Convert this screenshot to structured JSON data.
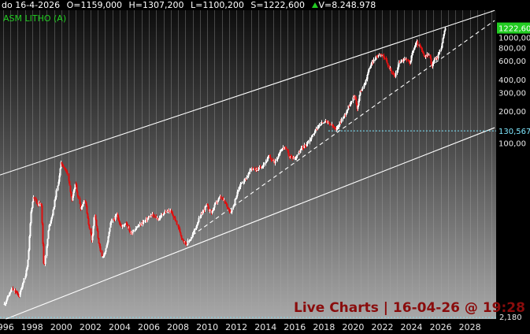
{
  "header": {
    "date": "do 16-4-2026",
    "open": "O=1159,000",
    "high": "H=1307,200",
    "low": "L=1100,200",
    "close": "S=1222,600",
    "volume": "V=8.248.978"
  },
  "symbol": "ASM LITHO (A)",
  "watermark": "Live Charts | 16-04-26 @ 19:28",
  "colors": {
    "up": "#ffffff",
    "down": "#dd1111",
    "last_price_bg": "#22cc22",
    "support_line": "#7fe8ff",
    "channel": "#ffffff",
    "grid": "#a8a8a8",
    "volume_arrow": "#22cc22"
  },
  "chart_data": {
    "type": "candlestick",
    "y_scale": "log",
    "ylim": [
      2.18,
      1800
    ],
    "xlim": [
      1995.8,
      2029.8
    ],
    "y_ticks": [
      {
        "v": 1000,
        "label": "1000,00"
      },
      {
        "v": 800,
        "label": "800,00"
      },
      {
        "v": 600,
        "label": "600,00"
      },
      {
        "v": 400,
        "label": "400,00"
      },
      {
        "v": 300,
        "label": "300,00"
      },
      {
        "v": 200,
        "label": "200,00"
      },
      {
        "v": 100,
        "label": "100,00"
      }
    ],
    "x_ticks": [
      "1996",
      "1998",
      "2000",
      "2002",
      "2004",
      "2006",
      "2008",
      "2010",
      "2012",
      "2014",
      "2016",
      "2018",
      "2020",
      "2022",
      "2024",
      "2026",
      "2028"
    ],
    "last_price": {
      "value": 1222.6,
      "label": "1222,60"
    },
    "support_level": {
      "value": 130.567,
      "label": "130,567",
      "from_year": 2018.3
    },
    "min_level": {
      "value": 2.18,
      "label": "2,180"
    },
    "series_anchors": [
      [
        1996.05,
        3.0
      ],
      [
        1996.6,
        4.2
      ],
      [
        1997.1,
        3.6
      ],
      [
        1997.5,
        5.6
      ],
      [
        1997.7,
        8.0
      ],
      [
        1997.9,
        22
      ],
      [
        1998.1,
        32
      ],
      [
        1998.3,
        26
      ],
      [
        1998.6,
        28
      ],
      [
        1998.8,
        6.5
      ],
      [
        1999.1,
        16
      ],
      [
        1999.4,
        22
      ],
      [
        1999.7,
        38
      ],
      [
        1999.95,
        65
      ],
      [
        2000.15,
        60
      ],
      [
        2000.4,
        52
      ],
      [
        2000.7,
        28
      ],
      [
        2000.95,
        42
      ],
      [
        2001.3,
        24
      ],
      [
        2001.6,
        30
      ],
      [
        2001.85,
        18
      ],
      [
        2002.05,
        12
      ],
      [
        2002.25,
        22
      ],
      [
        2002.5,
        13
      ],
      [
        2002.75,
        8.2
      ],
      [
        2003.05,
        10
      ],
      [
        2003.4,
        18
      ],
      [
        2003.8,
        21
      ],
      [
        2004.1,
        16
      ],
      [
        2004.4,
        18
      ],
      [
        2004.75,
        14
      ],
      [
        2005.1,
        16
      ],
      [
        2005.4,
        17
      ],
      [
        2005.8,
        19
      ],
      [
        2006.2,
        21
      ],
      [
        2006.6,
        19
      ],
      [
        2007.0,
        22
      ],
      [
        2007.4,
        23
      ],
      [
        2007.8,
        19
      ],
      [
        2008.2,
        13
      ],
      [
        2008.55,
        11
      ],
      [
        2008.9,
        13
      ],
      [
        2009.2,
        16
      ],
      [
        2009.6,
        22
      ],
      [
        2009.95,
        26
      ],
      [
        2010.25,
        22
      ],
      [
        2010.55,
        27
      ],
      [
        2010.9,
        31
      ],
      [
        2011.3,
        26
      ],
      [
        2011.6,
        22
      ],
      [
        2011.9,
        30
      ],
      [
        2012.3,
        42
      ],
      [
        2012.7,
        48
      ],
      [
        2013.0,
        58
      ],
      [
        2013.4,
        56
      ],
      [
        2013.8,
        62
      ],
      [
        2014.2,
        74
      ],
      [
        2014.6,
        66
      ],
      [
        2015.0,
        86
      ],
      [
        2015.3,
        92
      ],
      [
        2015.6,
        74
      ],
      [
        2016.0,
        72
      ],
      [
        2016.4,
        88
      ],
      [
        2016.8,
        98
      ],
      [
        2017.2,
        120
      ],
      [
        2017.6,
        145
      ],
      [
        2018.0,
        162
      ],
      [
        2018.4,
        152
      ],
      [
        2018.8,
        132
      ],
      [
        2019.1,
        158
      ],
      [
        2019.5,
        198
      ],
      [
        2019.9,
        258
      ],
      [
        2020.1,
        284
      ],
      [
        2020.25,
        205
      ],
      [
        2020.45,
        298
      ],
      [
        2020.8,
        380
      ],
      [
        2021.1,
        520
      ],
      [
        2021.5,
        640
      ],
      [
        2021.8,
        700
      ],
      [
        2022.0,
        690
      ],
      [
        2022.3,
        560
      ],
      [
        2022.6,
        480
      ],
      [
        2022.85,
        420
      ],
      [
        2023.1,
        580
      ],
      [
        2023.5,
        620
      ],
      [
        2023.85,
        580
      ],
      [
        2024.1,
        760
      ],
      [
        2024.35,
        900
      ],
      [
        2024.6,
        780
      ],
      [
        2024.9,
        640
      ],
      [
        2025.15,
        700
      ],
      [
        2025.35,
        540
      ],
      [
        2025.55,
        620
      ],
      [
        2025.75,
        640
      ],
      [
        2025.95,
        760
      ],
      [
        2026.15,
        1020
      ],
      [
        2026.29,
        1222.6
      ]
    ],
    "channel_lines": [
      {
        "name": "upper",
        "style": "solid",
        "from": [
          1995.8,
          50
        ],
        "to": [
          2029.7,
          1792
        ]
      },
      {
        "name": "lower",
        "style": "solid",
        "from": [
          1996.2,
          2.18
        ],
        "to": [
          2029.7,
          140
        ]
      },
      {
        "name": "support",
        "style": "dashed",
        "from": [
          2009.0,
          13.5
        ],
        "to": [
          2029.7,
          1440
        ]
      }
    ]
  }
}
